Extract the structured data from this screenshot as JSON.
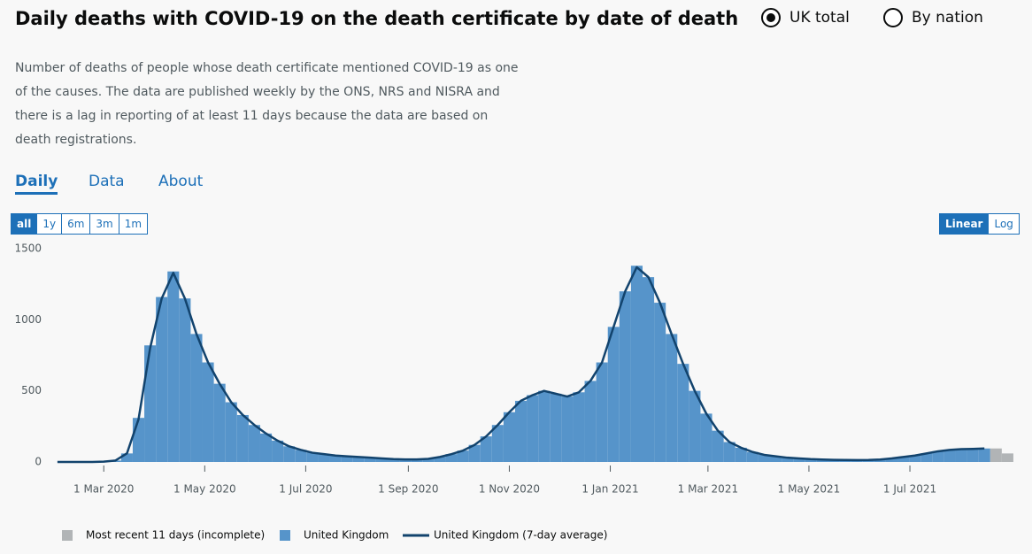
{
  "ui": {
    "title": "Daily deaths with COVID-19 on the death certificate by date of death",
    "radios": [
      "UK total",
      "By nation"
    ],
    "description": "Number of deaths of people whose death certificate mentioned COVID-19 as one of the causes. The data are published weekly by the ONS, NRS and NISRA and there is a lag in reporting of at least 11 days because the data are based on death registrations.",
    "tabs": [
      "Daily",
      "Data",
      "About"
    ],
    "ranges": [
      "all",
      "1y",
      "6m",
      "3m",
      "1m"
    ],
    "scales": [
      "Linear",
      "Log"
    ]
  },
  "chart_data": {
    "type": "bar",
    "x": [
      "2020-02-02",
      "2020-02-09",
      "2020-02-16",
      "2020-02-23",
      "2020-03-01",
      "2020-03-08",
      "2020-03-15",
      "2020-03-22",
      "2020-03-29",
      "2020-04-05",
      "2020-04-12",
      "2020-04-19",
      "2020-04-26",
      "2020-05-03",
      "2020-05-10",
      "2020-05-17",
      "2020-05-24",
      "2020-05-31",
      "2020-06-07",
      "2020-06-14",
      "2020-06-21",
      "2020-06-28",
      "2020-07-05",
      "2020-07-12",
      "2020-07-19",
      "2020-07-26",
      "2020-08-02",
      "2020-08-09",
      "2020-08-16",
      "2020-08-23",
      "2020-08-30",
      "2020-09-06",
      "2020-09-13",
      "2020-09-20",
      "2020-09-27",
      "2020-10-04",
      "2020-10-11",
      "2020-10-18",
      "2020-10-25",
      "2020-11-01",
      "2020-11-08",
      "2020-11-15",
      "2020-11-22",
      "2020-11-29",
      "2020-12-06",
      "2020-12-13",
      "2020-12-20",
      "2020-12-27",
      "2021-01-03",
      "2021-01-10",
      "2021-01-17",
      "2021-01-24",
      "2021-01-31",
      "2021-02-07",
      "2021-02-14",
      "2021-02-21",
      "2021-02-28",
      "2021-03-07",
      "2021-03-14",
      "2021-03-21",
      "2021-03-28",
      "2021-04-04",
      "2021-04-11",
      "2021-04-18",
      "2021-04-25",
      "2021-05-02",
      "2021-05-09",
      "2021-05-16",
      "2021-05-23",
      "2021-05-30",
      "2021-06-06",
      "2021-06-13",
      "2021-06-20",
      "2021-06-27",
      "2021-07-04",
      "2021-07-11",
      "2021-07-18",
      "2021-07-25",
      "2021-08-01",
      "2021-08-08",
      "2021-08-15",
      "2021-08-22",
      "2021-08-29"
    ],
    "series": [
      {
        "name": "Most recent 11 days (incomplete)",
        "color": "#b1b4b6",
        "kind": "bar",
        "values": [
          null,
          null,
          null,
          null,
          null,
          null,
          null,
          null,
          null,
          null,
          null,
          null,
          null,
          null,
          null,
          null,
          null,
          null,
          null,
          null,
          null,
          null,
          null,
          null,
          null,
          null,
          null,
          null,
          null,
          null,
          null,
          null,
          null,
          null,
          null,
          null,
          null,
          null,
          null,
          null,
          null,
          null,
          null,
          null,
          null,
          null,
          null,
          null,
          null,
          null,
          null,
          null,
          null,
          null,
          null,
          null,
          null,
          null,
          null,
          null,
          null,
          null,
          null,
          null,
          null,
          null,
          null,
          null,
          null,
          null,
          null,
          null,
          null,
          null,
          null,
          null,
          null,
          null,
          null,
          null,
          null,
          95,
          60
        ]
      },
      {
        "name": "United Kingdom",
        "color": "#5694ca",
        "kind": "bar",
        "values": [
          0,
          0,
          0,
          0,
          2,
          10,
          60,
          310,
          820,
          1160,
          1340,
          1150,
          900,
          700,
          550,
          420,
          330,
          260,
          200,
          150,
          110,
          85,
          65,
          55,
          45,
          40,
          35,
          30,
          25,
          20,
          18,
          18,
          22,
          35,
          55,
          80,
          120,
          180,
          260,
          350,
          430,
          470,
          500,
          480,
          460,
          490,
          570,
          700,
          950,
          1200,
          1380,
          1300,
          1120,
          900,
          690,
          500,
          340,
          220,
          140,
          100,
          70,
          50,
          40,
          30,
          25,
          20,
          17,
          15,
          14,
          13,
          14,
          17,
          25,
          35,
          45,
          60,
          75,
          85,
          90,
          92,
          95,
          null,
          null
        ]
      },
      {
        "name": "United Kingdom (7-day average)",
        "color": "#12436d",
        "kind": "line",
        "values": [
          0,
          0,
          0,
          0,
          2,
          10,
          60,
          300,
          800,
          1150,
          1330,
          1150,
          900,
          700,
          550,
          420,
          330,
          260,
          200,
          150,
          110,
          85,
          65,
          55,
          45,
          40,
          35,
          30,
          25,
          20,
          18,
          18,
          22,
          35,
          55,
          80,
          120,
          180,
          260,
          350,
          430,
          470,
          500,
          480,
          460,
          490,
          570,
          700,
          950,
          1200,
          1370,
          1300,
          1120,
          900,
          690,
          500,
          340,
          220,
          140,
          100,
          70,
          50,
          40,
          30,
          25,
          20,
          17,
          15,
          14,
          13,
          14,
          17,
          25,
          35,
          45,
          60,
          75,
          85,
          90,
          92,
          95,
          null,
          null
        ]
      }
    ],
    "xlim": [
      "2020-02-01",
      "2021-09-01"
    ],
    "xticks": [
      {
        "value": "2020-03-01",
        "label": "1 Mar 2020"
      },
      {
        "value": "2020-05-01",
        "label": "1 May 2020"
      },
      {
        "value": "2020-07-01",
        "label": "1 Jul 2020"
      },
      {
        "value": "2020-09-01",
        "label": "1 Sep 2020"
      },
      {
        "value": "2020-11-01",
        "label": "1 Nov 2020"
      },
      {
        "value": "2021-01-01",
        "label": "1 Jan 2021"
      },
      {
        "value": "2021-03-01",
        "label": "1 Mar 2021"
      },
      {
        "value": "2021-05-01",
        "label": "1 May 2021"
      },
      {
        "value": "2021-07-01",
        "label": "1 Jul 2021"
      }
    ],
    "ylim": [
      0,
      1500
    ],
    "yticks": [
      0,
      500,
      1000,
      1500
    ],
    "grid": false
  }
}
